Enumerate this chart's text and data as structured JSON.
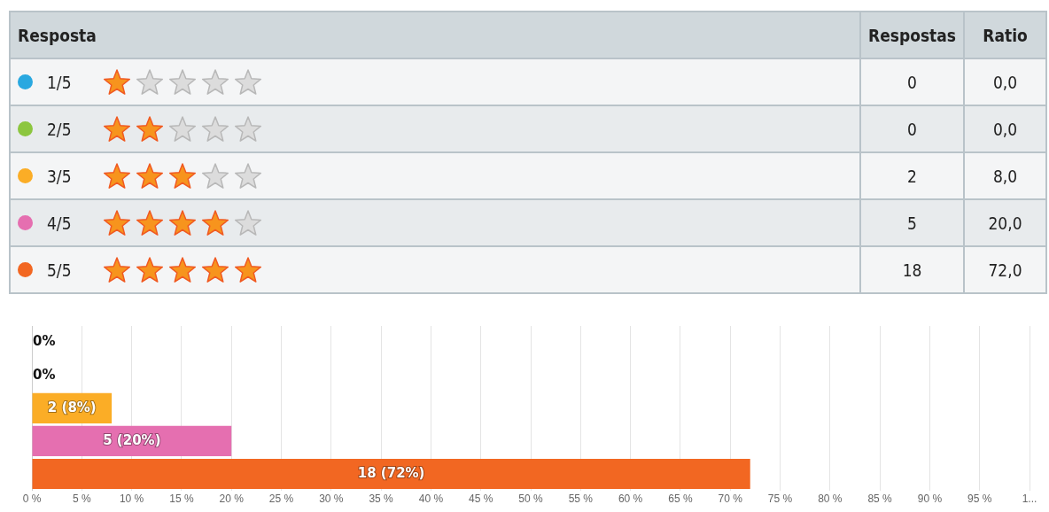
{
  "chart_data": {
    "type": "bar",
    "orientation": "horizontal",
    "categories": [
      null,
      null,
      null,
      null,
      null
    ],
    "values": [
      0,
      0,
      8,
      20,
      72
    ],
    "colors": [
      "#29a8e0",
      "#8cc63f",
      "#fbad26",
      "#e56fb0",
      "#f26722"
    ],
    "value_labels": [
      "0%",
      "0%",
      "2 (8%)",
      "5 (20%)",
      "18 (72%)"
    ],
    "xlim": [
      0,
      100
    ],
    "xticks": [
      {
        "value": 0,
        "label": "0 %"
      },
      {
        "value": 5,
        "label": "5 %"
      },
      {
        "value": 10,
        "label": "10 %"
      },
      {
        "value": 15,
        "label": "15 %"
      },
      {
        "value": 20,
        "label": "20 %"
      },
      {
        "value": 25,
        "label": "25 %"
      },
      {
        "value": 30,
        "label": "30 %"
      },
      {
        "value": 35,
        "label": "35 %"
      },
      {
        "value": 40,
        "label": "40 %"
      },
      {
        "value": 45,
        "label": "45 %"
      },
      {
        "value": 50,
        "label": "50 %"
      },
      {
        "value": 55,
        "label": "55 %"
      },
      {
        "value": 60,
        "label": "60 %"
      },
      {
        "value": 65,
        "label": "65 %"
      },
      {
        "value": 70,
        "label": "70 %"
      },
      {
        "value": 75,
        "label": "75 %"
      },
      {
        "value": 80,
        "label": "80 %"
      },
      {
        "value": 85,
        "label": "85 %"
      },
      {
        "value": 90,
        "label": "90 %"
      },
      {
        "value": 95,
        "label": "95 %"
      },
      {
        "value": 100,
        "label": "1..."
      }
    ],
    "grid": "x",
    "legend": false,
    "tick_labels": "x",
    "annotations": [
      "Resposta",
      "Respostas",
      "Ratio",
      "1/5",
      "0",
      "0,0",
      "2/5",
      "0",
      "0,0",
      "3/5",
      "2",
      "8,0",
      "4/5",
      "5",
      "20,0",
      "5/5",
      "18",
      "72,0"
    ]
  }
}
